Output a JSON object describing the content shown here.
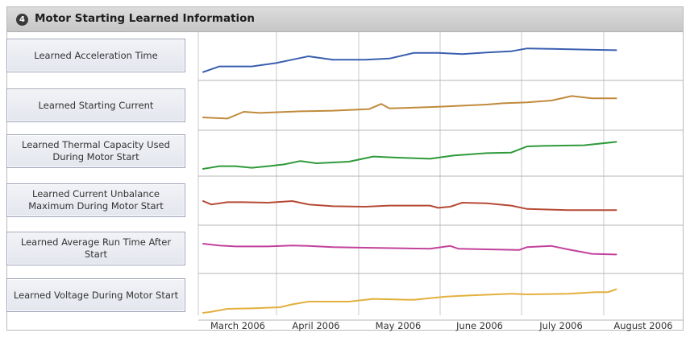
{
  "panel": {
    "number": "4",
    "title": "Motor Starting Learned Information"
  },
  "chart_data": {
    "type": "line",
    "x": [
      "March 2006",
      "April 2006",
      "May 2006",
      "June 2006",
      "July 2006",
      "August 2006"
    ],
    "xlabel": "",
    "ylabel": "",
    "grid": true,
    "series": [
      {
        "name": "Learned Acceleration Time",
        "color": "#3a5fb0",
        "values": [
          [
            0,
            0.05
          ],
          [
            0.2,
            0.3
          ],
          [
            0.6,
            0.3
          ],
          [
            0.9,
            0.45
          ],
          [
            1.1,
            0.6
          ],
          [
            1.3,
            0.75
          ],
          [
            1.6,
            0.6
          ],
          [
            2.0,
            0.6
          ],
          [
            2.3,
            0.65
          ],
          [
            2.6,
            0.9
          ],
          [
            2.9,
            0.9
          ],
          [
            3.2,
            0.85
          ],
          [
            3.5,
            0.92
          ],
          [
            3.8,
            0.97
          ],
          [
            4.0,
            1.1
          ],
          [
            4.3,
            1.08
          ],
          [
            4.7,
            1.05
          ],
          [
            5.1,
            1.02
          ]
        ]
      },
      {
        "name": "Learned Starting Current",
        "color": "#c08a3c",
        "values": [
          [
            0,
            0.25
          ],
          [
            0.3,
            0.2
          ],
          [
            0.5,
            0.5
          ],
          [
            0.7,
            0.45
          ],
          [
            1.2,
            0.52
          ],
          [
            1.6,
            0.55
          ],
          [
            2.05,
            0.62
          ],
          [
            2.2,
            0.85
          ],
          [
            2.3,
            0.65
          ],
          [
            2.9,
            0.72
          ],
          [
            3.5,
            0.82
          ],
          [
            3.7,
            0.88
          ],
          [
            4.0,
            0.92
          ],
          [
            4.3,
            1.0
          ],
          [
            4.55,
            1.2
          ],
          [
            4.8,
            1.1
          ],
          [
            5.1,
            1.1
          ]
        ]
      },
      {
        "name": "Learned Thermal Capacity Used During Motor Start",
        "color": "#2e9a3a",
        "values": [
          [
            0,
            0.0
          ],
          [
            0.2,
            0.12
          ],
          [
            0.4,
            0.12
          ],
          [
            0.6,
            0.05
          ],
          [
            0.8,
            0.12
          ],
          [
            1.0,
            0.2
          ],
          [
            1.2,
            0.35
          ],
          [
            1.4,
            0.25
          ],
          [
            1.8,
            0.32
          ],
          [
            2.1,
            0.55
          ],
          [
            2.4,
            0.5
          ],
          [
            2.8,
            0.45
          ],
          [
            3.1,
            0.6
          ],
          [
            3.5,
            0.7
          ],
          [
            3.8,
            0.72
          ],
          [
            4.0,
            1.0
          ],
          [
            4.2,
            1.02
          ],
          [
            4.7,
            1.05
          ],
          [
            5.1,
            1.2
          ]
        ]
      },
      {
        "name": "Learned Current Unbalance Maximum During Motor Start",
        "color": "#b64a35",
        "values": [
          [
            0,
            0.75
          ],
          [
            0.1,
            0.6
          ],
          [
            0.3,
            0.7
          ],
          [
            0.5,
            0.7
          ],
          [
            0.8,
            0.68
          ],
          [
            1.1,
            0.75
          ],
          [
            1.3,
            0.6
          ],
          [
            1.6,
            0.52
          ],
          [
            2.0,
            0.5
          ],
          [
            2.3,
            0.55
          ],
          [
            2.8,
            0.55
          ],
          [
            2.9,
            0.45
          ],
          [
            3.05,
            0.5
          ],
          [
            3.2,
            0.68
          ],
          [
            3.5,
            0.65
          ],
          [
            3.8,
            0.55
          ],
          [
            4.0,
            0.4
          ],
          [
            4.5,
            0.35
          ],
          [
            5.1,
            0.35
          ]
        ]
      },
      {
        "name": "Learned Average Run Time After Start",
        "color": "#c2419c",
        "values": [
          [
            0,
            1.0
          ],
          [
            0.2,
            0.92
          ],
          [
            0.4,
            0.88
          ],
          [
            0.8,
            0.88
          ],
          [
            1.1,
            0.92
          ],
          [
            1.3,
            0.9
          ],
          [
            1.6,
            0.85
          ],
          [
            2.0,
            0.82
          ],
          [
            2.4,
            0.8
          ],
          [
            2.8,
            0.78
          ],
          [
            3.05,
            0.9
          ],
          [
            3.15,
            0.78
          ],
          [
            3.5,
            0.75
          ],
          [
            3.9,
            0.72
          ],
          [
            4.0,
            0.85
          ],
          [
            4.3,
            0.9
          ],
          [
            4.5,
            0.75
          ],
          [
            4.8,
            0.55
          ],
          [
            5.1,
            0.52
          ]
        ]
      },
      {
        "name": "Learned Voltage During Motor Start",
        "color": "#e3b03c",
        "values": [
          [
            0,
            0.0
          ],
          [
            0.1,
            0.05
          ],
          [
            0.3,
            0.18
          ],
          [
            0.6,
            0.2
          ],
          [
            0.95,
            0.25
          ],
          [
            1.1,
            0.38
          ],
          [
            1.3,
            0.5
          ],
          [
            1.8,
            0.5
          ],
          [
            2.1,
            0.62
          ],
          [
            2.6,
            0.58
          ],
          [
            3.0,
            0.72
          ],
          [
            3.3,
            0.78
          ],
          [
            3.8,
            0.85
          ],
          [
            4.0,
            0.82
          ],
          [
            4.5,
            0.85
          ],
          [
            4.85,
            0.92
          ],
          [
            5.0,
            0.92
          ],
          [
            5.1,
            1.05
          ]
        ]
      }
    ]
  }
}
